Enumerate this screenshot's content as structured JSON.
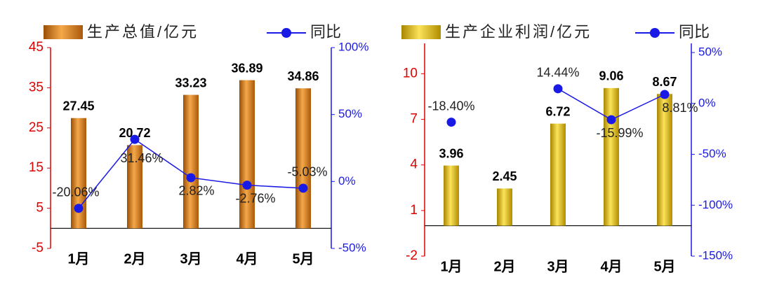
{
  "chart_data": [
    {
      "type": "bar",
      "categories": [
        "1月",
        "2月",
        "3月",
        "4月",
        "5月"
      ],
      "series": [
        {
          "name": "生产总值/亿元",
          "color": "#e08a1e",
          "values": [
            27.45,
            20.72,
            33.23,
            36.89,
            34.86
          ]
        },
        {
          "name": "同比",
          "color": "#1a1ae6",
          "axis": "y2",
          "values": [
            -20.06,
            31.46,
            2.82,
            -2.76,
            -5.03
          ],
          "value_labels": [
            "-20.06%",
            "31.46%",
            "2.82%",
            "-2.76%",
            "-5.03%"
          ]
        }
      ],
      "ylim": [
        -5,
        45
      ],
      "yticks": [
        -5,
        5,
        15,
        25,
        35,
        45
      ],
      "y2lim": [
        -50,
        100
      ],
      "y2ticks": [
        {
          "value": -50,
          "label": "-50%"
        },
        {
          "value": 0,
          "label": "0%"
        },
        {
          "value": 50,
          "label": "50%"
        },
        {
          "value": 100,
          "label": "100%"
        }
      ]
    },
    {
      "type": "bar",
      "categories": [
        "1月",
        "2月",
        "3月",
        "4月",
        "5月"
      ],
      "series": [
        {
          "name": "生产企业利润/亿元",
          "color": "#e3b800",
          "values": [
            3.96,
            2.45,
            6.72,
            9.06,
            8.67
          ]
        },
        {
          "name": "同比",
          "color": "#1a1ae6",
          "axis": "y2",
          "values": [
            -18.4,
            null,
            14.44,
            -15.99,
            8.81
          ],
          "value_labels": [
            "-18.40%",
            null,
            "14.44%",
            "-15.99%",
            "8.81%"
          ]
        }
      ],
      "ylim": [
        -2,
        12
      ],
      "yticks": [
        -2,
        1,
        4,
        7,
        10
      ],
      "y2lim": [
        -150,
        59
      ],
      "y2ticks": [
        {
          "value": -150,
          "label": "-150%"
        },
        {
          "value": -100,
          "label": "-100%"
        },
        {
          "value": -50,
          "label": "-50%"
        },
        {
          "value": 0,
          "label": "0%"
        },
        {
          "value": 50,
          "label": "50%"
        }
      ]
    }
  ]
}
